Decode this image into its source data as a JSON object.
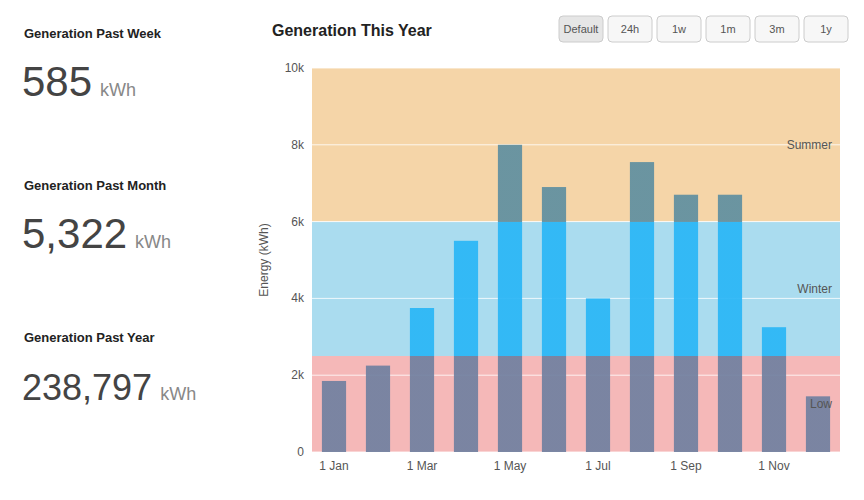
{
  "chart_data": {
    "type": "bar",
    "title": "Generation This Year",
    "ylabel": "Energy (kWh)",
    "categories": [
      "1 Jan",
      null,
      "1 Mar",
      null,
      "1 May",
      null,
      "1 Jul",
      null,
      "1 Sep",
      null,
      "1 Nov",
      null
    ],
    "values": [
      1850,
      2250,
      3750,
      5500,
      8000,
      6900,
      4000,
      7550,
      6700,
      6700,
      3250,
      1450
    ],
    "ylim": [
      0,
      10000
    ],
    "yticks": [
      0,
      {
        "value": 2000,
        "label": "2k"
      },
      {
        "value": 4000,
        "label": "4k"
      },
      {
        "value": 6000,
        "label": "6k"
      },
      {
        "value": 8000,
        "label": "8k"
      },
      {
        "value": 10000,
        "label": "10k"
      }
    ],
    "grid": true,
    "zones": [
      {
        "name": "Low",
        "from": 0,
        "to": 2500,
        "color": "#f5b8b8",
        "bar_color": "#7080a0"
      },
      {
        "name": "Winter",
        "from": 2500,
        "to": 6000,
        "color": "#aadcef",
        "bar_color": "#29b6f6"
      },
      {
        "name": "Summer",
        "from": 6000,
        "to": 10000,
        "color": "#f5d5a8",
        "bar_color": "#5f8fa0"
      }
    ],
    "annotations": [
      {
        "text": "Generation Past Week",
        "value": 585,
        "label": "585",
        "unit": "kWh"
      },
      {
        "text": "Generation Past Month",
        "value": 5322,
        "label": "5,322",
        "unit": "kWh"
      },
      {
        "text": "Generation Past Year",
        "value": 238797,
        "label": "238,797",
        "unit": "kWh"
      }
    ],
    "buttons": [
      "Default",
      "24h",
      "1w",
      "1m",
      "3m",
      "1y"
    ]
  }
}
